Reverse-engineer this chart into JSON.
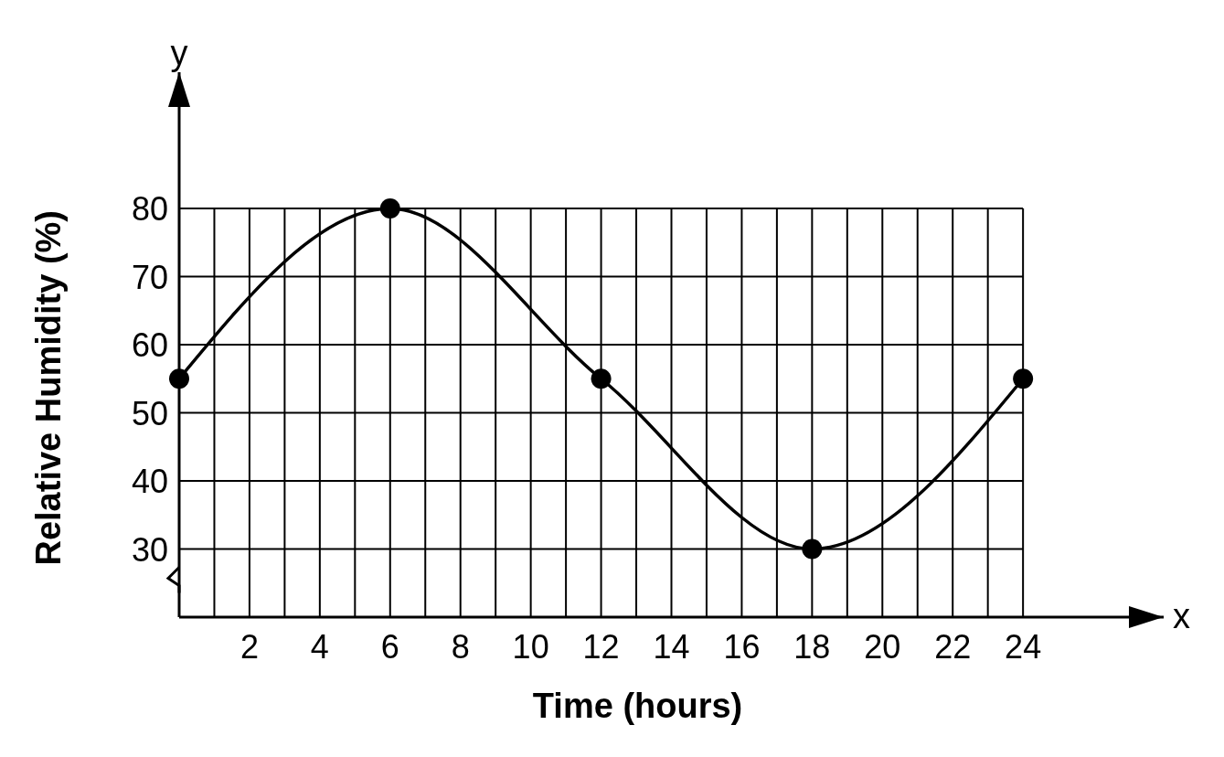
{
  "chart_data": {
    "type": "line",
    "xlabel": "Time (hours)",
    "ylabel": "Relative Humidity (%)",
    "annotations": [
      "y",
      "x"
    ],
    "x": [
      0,
      6,
      12,
      18,
      24
    ],
    "series": [
      {
        "color": "#000000",
        "values": [
          55,
          80,
          55,
          30,
          55
        ]
      }
    ],
    "xlim": [
      0,
      28
    ],
    "ylim": [
      20,
      100
    ],
    "xticks": [
      {
        "value": 0,
        "label": null
      },
      {
        "value": 1,
        "label": null
      },
      2,
      {
        "value": 3,
        "label": null
      },
      4,
      {
        "value": 5,
        "label": null
      },
      6,
      {
        "value": 7,
        "label": null
      },
      8,
      {
        "value": 9,
        "label": null
      },
      10,
      {
        "value": 11,
        "label": null
      },
      12,
      {
        "value": 13,
        "label": null
      },
      14,
      {
        "value": 15,
        "label": null
      },
      16,
      {
        "value": 17,
        "label": null
      },
      18,
      {
        "value": 19,
        "label": null
      },
      20,
      {
        "value": 21,
        "label": null
      },
      22,
      {
        "value": 23,
        "label": null
      },
      24
    ],
    "yticks": [
      30,
      40,
      50,
      60,
      70,
      80
    ],
    "grid": true,
    "marker": "circle",
    "line_style": "solid"
  }
}
